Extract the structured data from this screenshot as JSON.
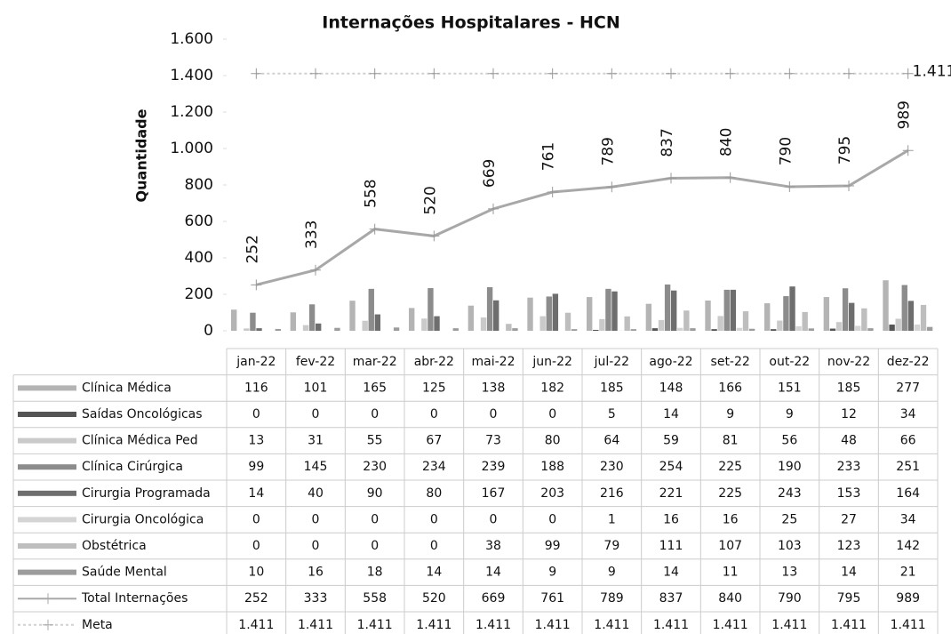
{
  "chart_data": {
    "type": "bar",
    "title": "Internações Hospitalares - HCN",
    "y_label": "Quantidade",
    "categories": [
      "jan-22",
      "fev-22",
      "mar-22",
      "abr-22",
      "mai-22",
      "jun-22",
      "jul-22",
      "ago-22",
      "set-22",
      "out-22",
      "nov-22",
      "dez-22"
    ],
    "ylim": [
      0,
      1600
    ],
    "yticks": [
      0,
      200,
      400,
      600,
      800,
      {
        "value": 1000,
        "label": "1.000"
      },
      {
        "value": 1200,
        "label": "1.200"
      },
      {
        "value": 1400,
        "label": "1.400"
      },
      {
        "value": 1600,
        "label": "1.600"
      }
    ],
    "grid": false,
    "series": [
      {
        "name": "Clínica Médica",
        "type": "bar",
        "color": "#b4b4b4",
        "values": [
          116,
          101,
          165,
          125,
          138,
          182,
          185,
          148,
          166,
          151,
          185,
          277
        ]
      },
      {
        "name": "Saídas Oncológicas",
        "type": "bar",
        "color": "#555555",
        "values": [
          0,
          0,
          0,
          0,
          0,
          0,
          5,
          14,
          9,
          9,
          12,
          34
        ]
      },
      {
        "name": "Clínica Médica Ped",
        "type": "bar",
        "color": "#cacaca",
        "values": [
          13,
          31,
          55,
          67,
          73,
          80,
          64,
          59,
          81,
          56,
          48,
          66
        ]
      },
      {
        "name": "Clínica Cirúrgica",
        "type": "bar",
        "color": "#8c8c8c",
        "values": [
          99,
          145,
          230,
          234,
          239,
          188,
          230,
          254,
          225,
          190,
          233,
          251
        ]
      },
      {
        "name": "Cirurgia Programada",
        "type": "bar",
        "color": "#6e6e6e",
        "values": [
          14,
          40,
          90,
          80,
          167,
          203,
          216,
          221,
          225,
          243,
          153,
          164
        ]
      },
      {
        "name": "Cirurgia Oncológica",
        "type": "bar",
        "color": "#d4d4d4",
        "values": [
          0,
          0,
          0,
          0,
          0,
          0,
          1,
          16,
          16,
          25,
          27,
          34
        ]
      },
      {
        "name": "Obstétrica",
        "type": "bar",
        "color": "#bebebe",
        "values": [
          0,
          0,
          0,
          0,
          38,
          99,
          79,
          111,
          107,
          103,
          123,
          142
        ]
      },
      {
        "name": "Saúde Mental",
        "type": "bar",
        "color": "#9c9c9c",
        "values": [
          10,
          16,
          18,
          14,
          14,
          9,
          9,
          14,
          11,
          13,
          14,
          21
        ]
      },
      {
        "name": "Total Internações",
        "type": "line",
        "color": "#a8a8a8",
        "values": [
          252,
          333,
          558,
          520,
          669,
          761,
          789,
          837,
          840,
          790,
          795,
          989
        ]
      },
      {
        "name": "Meta",
        "type": "line",
        "color": "#d0d0d0",
        "values": [
          1411,
          1411,
          1411,
          1411,
          1411,
          1411,
          1411,
          1411,
          1411,
          1411,
          1411,
          1411
        ],
        "value_labels": [
          "1.411",
          "1.411",
          "1.411",
          "1.411",
          "1.411",
          "1.411",
          "1.411",
          "1.411",
          "1.411",
          "1.411",
          "1.411",
          "1.411"
        ]
      }
    ]
  }
}
